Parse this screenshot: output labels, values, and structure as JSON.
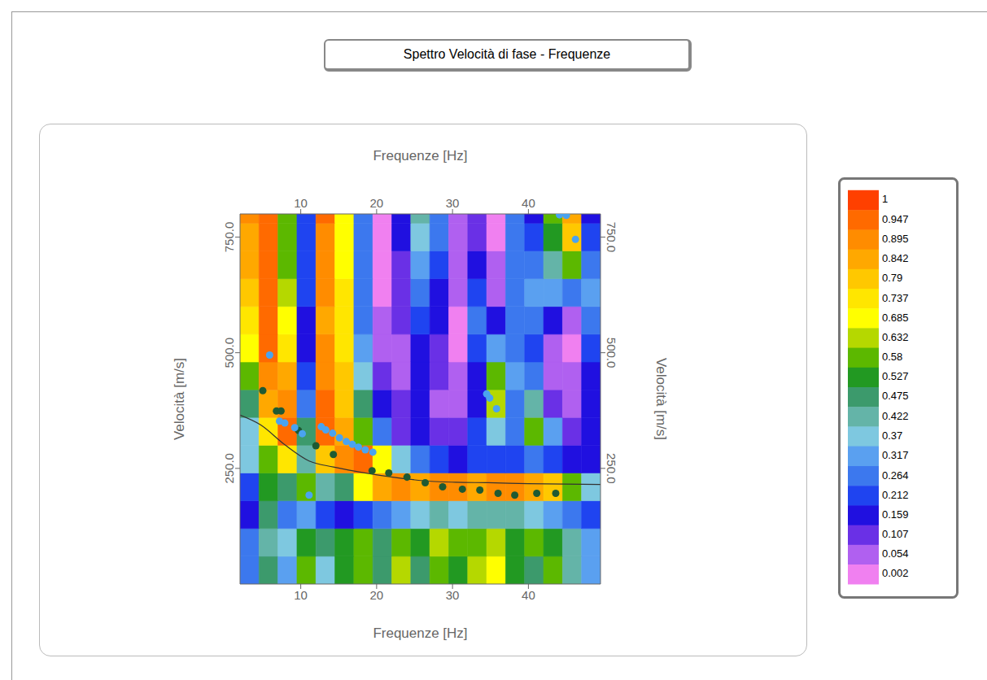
{
  "chart_data": {
    "type": "heatmap",
    "title": "Spettro Velocità di fase - Frequenze",
    "x_label": "Frequenze [Hz]",
    "y_label": "Velocità [m/s]",
    "xlim": [
      2,
      49.5
    ],
    "xticks": [
      10,
      20,
      30,
      40
    ],
    "ylim": [
      0,
      800
    ],
    "yticks": [
      {
        "value": 250,
        "label": "250.0"
      },
      {
        "value": 500,
        "label": "500.0"
      },
      {
        "value": 750,
        "label": "750.0"
      }
    ],
    "grid": false,
    "heatmap": {
      "x_edges": [
        2,
        4.5,
        7,
        9.5,
        12,
        14.5,
        17,
        19.5,
        22,
        24.5,
        27,
        29.5,
        32,
        34.5,
        37,
        39.5,
        42,
        44.5,
        47,
        49.5
      ],
      "y_edges": [
        0,
        60,
        120,
        180,
        240,
        300,
        360,
        420,
        480,
        540,
        600,
        660,
        720,
        780,
        800
      ],
      "values": [
        [
          0.3,
          0.5,
          0.35,
          0.6,
          0.4,
          0.55,
          0.6,
          0.5,
          0.65,
          0.5,
          0.6,
          0.55,
          0.65,
          0.7,
          0.55,
          0.5,
          0.6,
          0.45,
          0.35
        ],
        [
          0.3,
          0.45,
          0.4,
          0.55,
          0.5,
          0.55,
          0.6,
          0.5,
          0.6,
          0.55,
          0.65,
          0.6,
          0.6,
          0.65,
          0.55,
          0.6,
          0.55,
          0.45,
          0.35
        ],
        [
          0.2,
          0.5,
          0.3,
          0.35,
          0.25,
          0.2,
          0.25,
          0.3,
          0.35,
          0.4,
          0.45,
          0.4,
          0.45,
          0.45,
          0.45,
          0.4,
          0.35,
          0.3,
          0.25
        ],
        [
          0.25,
          0.55,
          0.5,
          0.6,
          0.45,
          0.5,
          0.7,
          0.85,
          0.9,
          0.85,
          0.9,
          0.92,
          0.88,
          0.9,
          0.92,
          0.85,
          0.8,
          0.6,
          0.4
        ],
        [
          0.4,
          0.6,
          0.75,
          0.45,
          0.8,
          0.9,
          0.95,
          0.7,
          0.4,
          0.3,
          0.25,
          0.2,
          0.25,
          0.25,
          0.25,
          0.3,
          0.25,
          0.2,
          0.2
        ],
        [
          0.4,
          0.75,
          0.95,
          0.5,
          0.95,
          0.85,
          0.6,
          0.3,
          0.15,
          0.2,
          0.15,
          0.12,
          0.25,
          0.4,
          0.3,
          0.6,
          0.35,
          0.15,
          0.2
        ],
        [
          0.5,
          0.85,
          0.92,
          0.3,
          0.95,
          0.82,
          0.5,
          0.2,
          0.12,
          0.2,
          0.1,
          0.1,
          0.2,
          0.65,
          0.3,
          0.45,
          0.15,
          0.1,
          0.2
        ],
        [
          0.6,
          0.92,
          0.85,
          0.22,
          0.92,
          0.8,
          0.4,
          0.12,
          0.1,
          0.2,
          0.12,
          0.08,
          0.2,
          0.6,
          0.35,
          0.3,
          0.1,
          0.08,
          0.2
        ],
        [
          0.7,
          0.95,
          0.75,
          0.2,
          0.9,
          0.78,
          0.35,
          0.1,
          0.1,
          0.2,
          0.15,
          0.05,
          0.25,
          0.35,
          0.3,
          0.25,
          0.1,
          0.05,
          0.25
        ],
        [
          0.75,
          0.96,
          0.7,
          0.2,
          0.88,
          0.77,
          0.3,
          0.08,
          0.12,
          0.25,
          0.18,
          0.05,
          0.3,
          0.2,
          0.3,
          0.3,
          0.2,
          0.1,
          0.3
        ],
        [
          0.8,
          0.97,
          0.65,
          0.22,
          0.9,
          0.75,
          0.28,
          0.05,
          0.15,
          0.3,
          0.2,
          0.08,
          0.25,
          0.1,
          0.3,
          0.35,
          0.35,
          0.3,
          0.35
        ],
        [
          0.85,
          0.97,
          0.62,
          0.25,
          0.92,
          0.73,
          0.3,
          0.05,
          0.15,
          0.35,
          0.25,
          0.08,
          0.2,
          0.1,
          0.3,
          0.3,
          0.45,
          0.6,
          0.3
        ],
        [
          0.88,
          0.98,
          0.6,
          0.25,
          0.93,
          0.72,
          0.3,
          0.05,
          0.2,
          0.4,
          0.3,
          0.1,
          0.15,
          0.05,
          0.3,
          0.25,
          0.55,
          0.8,
          0.25
        ],
        [
          0.9,
          0.98,
          0.6,
          0.25,
          0.95,
          0.7,
          0.3,
          0.05,
          0.2,
          0.45,
          0.3,
          0.1,
          0.15,
          0.05,
          0.3,
          0.2,
          0.6,
          0.85,
          0.2
        ]
      ]
    },
    "colorbar": {
      "range": [
        0.002,
        1
      ],
      "ticks": [
        1,
        0.947,
        0.895,
        0.842,
        0.79,
        0.737,
        0.685,
        0.632,
        0.58,
        0.527,
        0.475,
        0.422,
        0.37,
        0.317,
        0.264,
        0.212,
        0.159,
        0.107,
        0.054,
        0.002
      ],
      "colors": [
        "#ff4000",
        "#ff6a00",
        "#ff8c00",
        "#ffa800",
        "#ffc800",
        "#ffe600",
        "#ffff00",
        "#b5d800",
        "#5cb800",
        "#229922",
        "#3c9a6c",
        "#64b4a8",
        "#7ec8e0",
        "#5aa0f0",
        "#3c78ee",
        "#1f44f0",
        "#2010e0",
        "#6a30e6",
        "#b060f0",
        "#f080f0"
      ]
    },
    "series": [
      {
        "type": "scatter",
        "color": "#1f5a33",
        "marker": "circle",
        "x": [
          5.0,
          6.8,
          7.4,
          9.7,
          12.0,
          14.3,
          19.4,
          21.6,
          24.0,
          26.4,
          28.7,
          31.3,
          33.6,
          36.0,
          38.2,
          41.1,
          43.6
        ],
        "values": [
          418,
          374,
          374,
          332,
          299,
          280,
          245,
          240,
          231,
          219,
          210,
          205,
          203,
          196,
          192,
          196,
          196
        ]
      },
      {
        "type": "scatter",
        "color": "#4aa3f0",
        "marker": "circle",
        "x": [
          5.9,
          7.2,
          7.9,
          9.2,
          10.2,
          11.1,
          12.7,
          13.3,
          14.2,
          15.1,
          16.0,
          16.8,
          17.6,
          18.5,
          19.5,
          34.5,
          34.9,
          35.8,
          44.1,
          45.0,
          46.2
        ],
        "values": [
          495,
          352,
          348,
          338,
          325,
          192,
          340,
          333,
          326,
          316,
          308,
          302,
          296,
          290,
          285,
          411,
          402,
          379,
          798,
          797,
          745
        ]
      },
      {
        "type": "line",
        "color": "#333333",
        "line_style": "solid",
        "x": [
          2,
          4.7,
          7.9,
          11.1,
          14.3,
          17.5,
          20.8,
          24,
          27.2,
          30.4,
          34.7,
          40,
          49.5
        ],
        "values": [
          365,
          344,
          301,
          266,
          253,
          243,
          234,
          227,
          222,
          220,
          219,
          217,
          215
        ]
      }
    ]
  }
}
